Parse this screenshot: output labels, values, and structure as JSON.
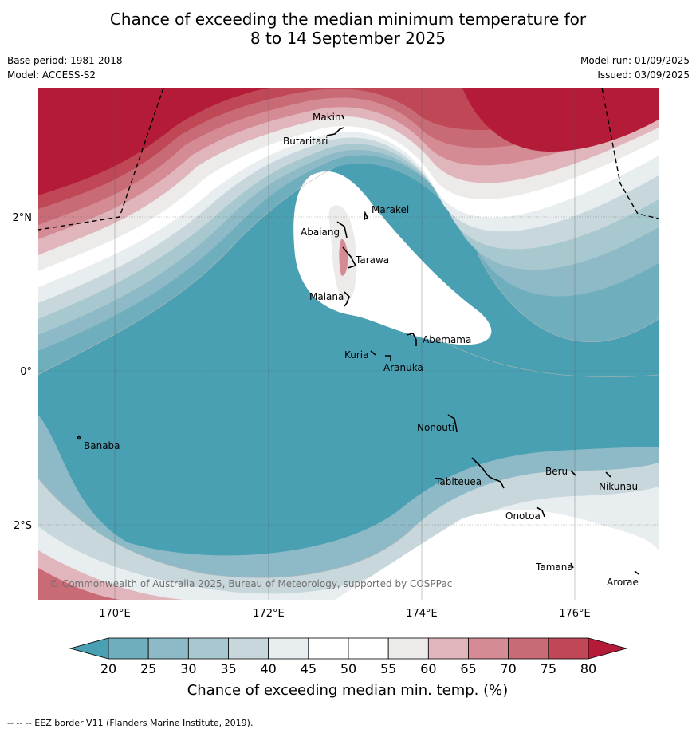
{
  "title_line1": "Chance of exceeding the median minimum temperature for",
  "title_line2": "8 to 14 September 2025",
  "base_period": "Base period: 1981-2018",
  "model": "Model: ACCESS-S2",
  "model_run": "Model run: 01/09/2025",
  "issued": "Issued: 03/09/2025",
  "copyright": "© Commonwealth of Australia 2025, Bureau of Meteorology, supported by COSPPac",
  "colorbar": {
    "label": "Chance of exceeding median min. temp. (%)",
    "ticks": [
      "20",
      "25",
      "30",
      "35",
      "40",
      "45",
      "50",
      "55",
      "60",
      "65",
      "70",
      "75",
      "80"
    ],
    "colors": [
      "#4aa0b3",
      "#6faebd",
      "#8dbac6",
      "#a8c8cf",
      "#c7d7dc",
      "#e8eef0",
      "#ffffff",
      "#ffffff",
      "#ecebea",
      "#e0b5bb",
      "#d58b94",
      "#c96b77",
      "#bf4756",
      "#b31b38"
    ]
  },
  "lon_labels": [
    "170°E",
    "172°E",
    "174°E",
    "176°E"
  ],
  "lat_labels": [
    "2°N",
    "0°",
    "2°S"
  ],
  "places": {
    "makin": "Makin",
    "butaritari": "Butaritari",
    "marakei": "Marakei",
    "abaiang": "Abaiang",
    "tarawa": "Tarawa",
    "maiana": "Maiana",
    "abemama": "Abemama",
    "kuria": "Kuria",
    "aranuka": "Aranuka",
    "banaba": "Banaba",
    "nonouti": "Nonouti",
    "tabiteuea": "Tabiteuea",
    "beru": "Beru",
    "nikunau": "Nikunau",
    "onotoa": "Onotoa",
    "tamana": "Tamana",
    "arorae": "Arorae"
  },
  "footer": "--  --  -- EEZ border V11 (Flanders Marine Institute, 2019)."
}
